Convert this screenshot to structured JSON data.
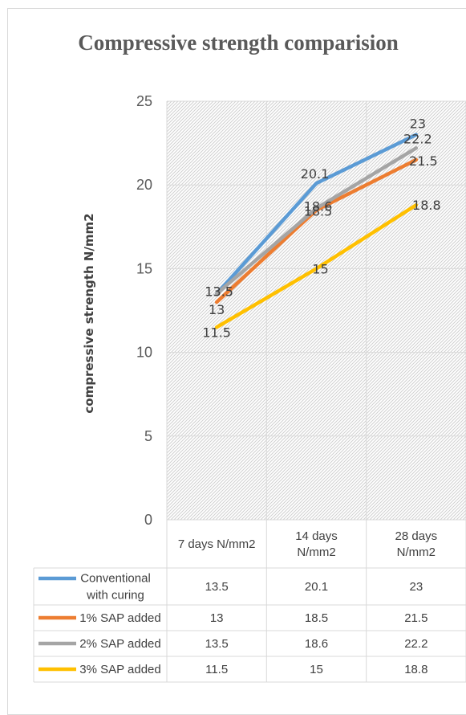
{
  "chart_data": {
    "type": "line",
    "title": "Compressive strength comparision",
    "ylabel": "compressive strength N/mm2",
    "xlabel": "",
    "ylim": [
      0,
      25
    ],
    "yticks": [
      0,
      5,
      10,
      15,
      20,
      25
    ],
    "grid": true,
    "legend": "data-table-below",
    "categories": [
      [
        "7 days N/mm2"
      ],
      [
        "14 days",
        "N/mm2"
      ],
      [
        "28 days",
        "N/mm2"
      ]
    ],
    "series": [
      {
        "name": [
          "Conventional",
          "with curing"
        ],
        "values": [
          13.5,
          20.1,
          23
        ],
        "color": "#5b9bd5"
      },
      {
        "name": [
          "1% SAP added"
        ],
        "values": [
          13,
          18.5,
          21.5
        ],
        "color": "#ed7d31"
      },
      {
        "name": [
          "2% SAP added"
        ],
        "values": [
          13.5,
          18.6,
          22.2
        ],
        "color": "#a5a5a5"
      },
      {
        "name": [
          "3% SAP added"
        ],
        "values": [
          11.5,
          15,
          18.8
        ],
        "color": "#ffc000"
      }
    ],
    "data_labels": [
      [
        "13.5",
        "20.1",
        "23"
      ],
      [
        "13",
        "18.5",
        "21.5"
      ],
      [
        "13.5",
        "18.6",
        "22.2"
      ],
      [
        "11.5",
        "15",
        "18.8"
      ]
    ],
    "table_cells": [
      [
        "13.5",
        "20.1",
        "23"
      ],
      [
        "13",
        "18.5",
        "21.5"
      ],
      [
        "13.5",
        "18.6",
        "22.2"
      ],
      [
        "11.5",
        "15",
        "18.8"
      ]
    ]
  }
}
